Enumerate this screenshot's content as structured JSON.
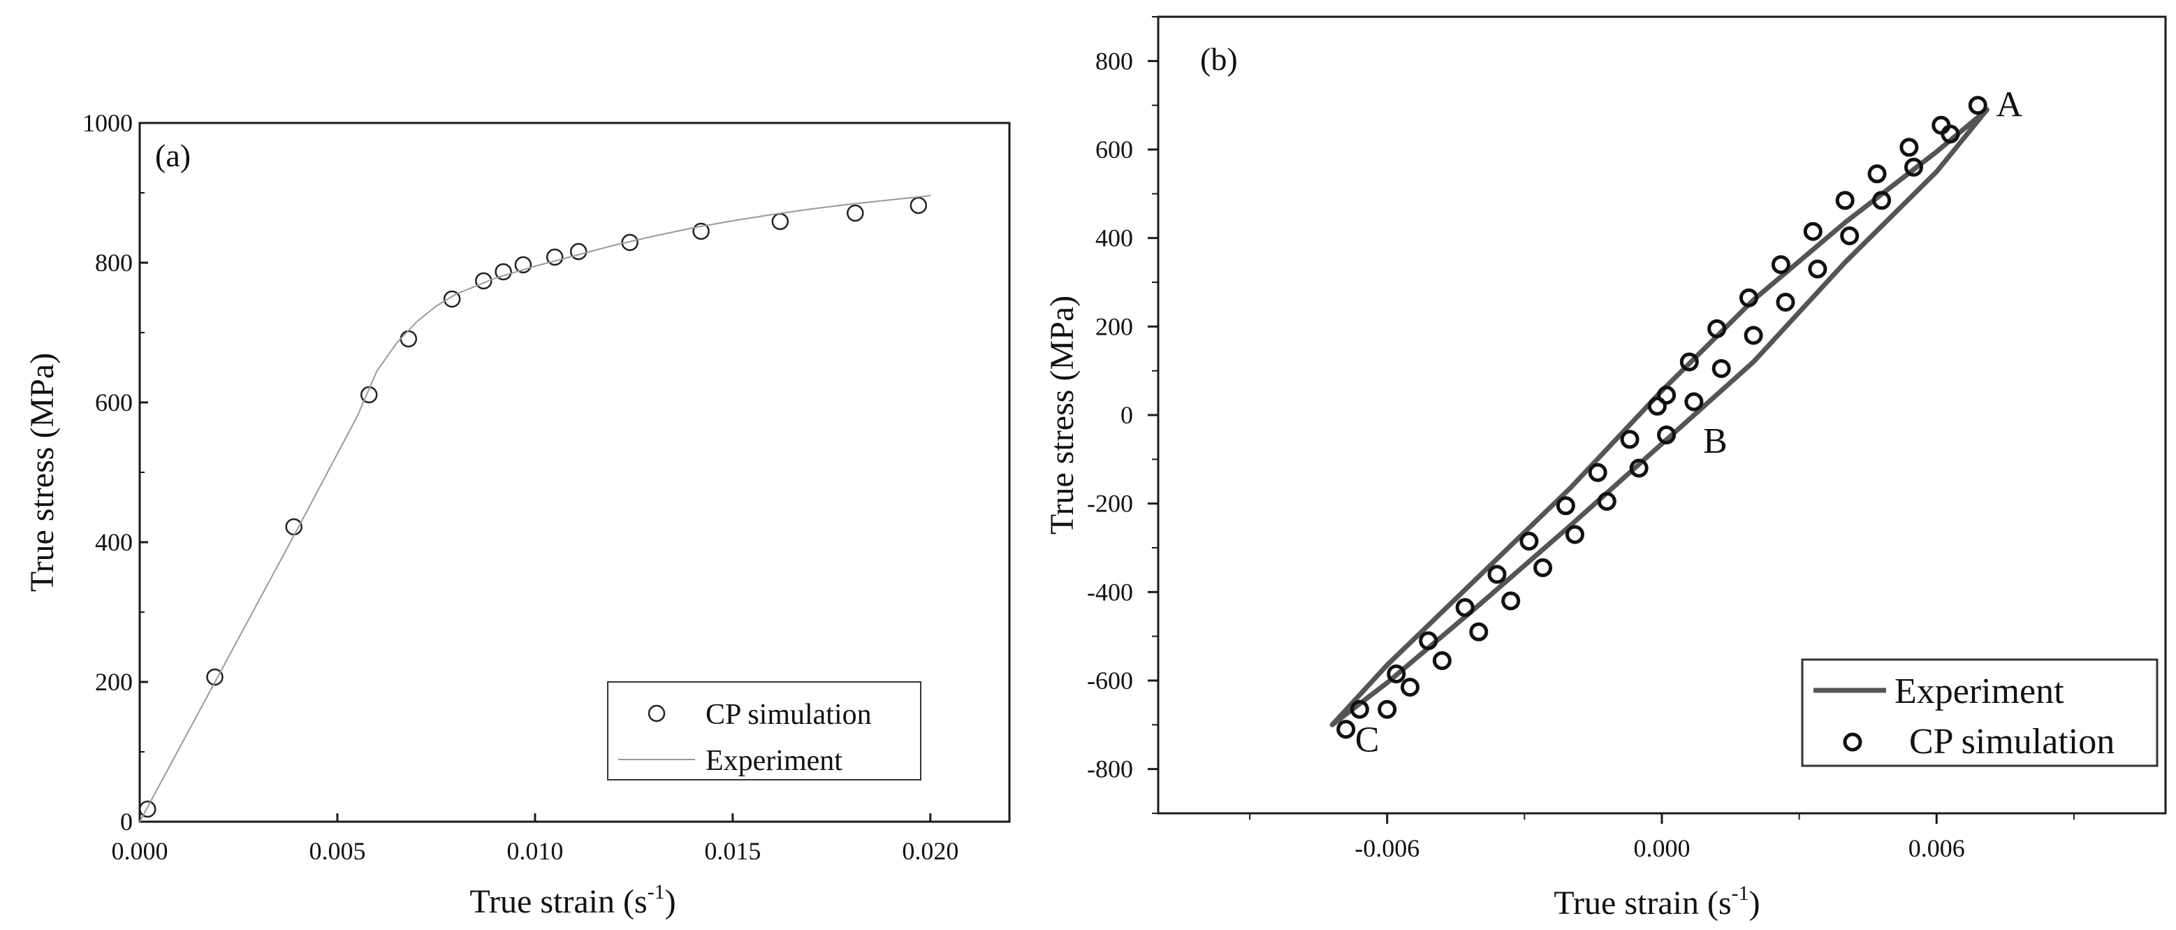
{
  "chart_data": [
    {
      "type": "scatter",
      "panel_label": "(a)",
      "xlabel": "True strain (s",
      "xlabel_exponent": "-1",
      "xlabel_suffix": ")",
      "ylabel": "True stress (MPa)",
      "xlim": [
        0,
        0.022
      ],
      "ylim": [
        0,
        1000
      ],
      "xticks": [
        0.0,
        0.005,
        0.01,
        0.015,
        0.02
      ],
      "xtick_labels": [
        "0.000",
        "0.005",
        "0.010",
        "0.015",
        "0.020"
      ],
      "yticks": [
        0,
        200,
        400,
        600,
        800,
        1000
      ],
      "ytick_labels": [
        "0",
        "200",
        "400",
        "600",
        "800",
        "1000"
      ],
      "legend_position": "bottom-right",
      "series": [
        {
          "name": "CP simulation",
          "style": "open-circle",
          "x": [
            0.0002,
            0.0019,
            0.0039,
            0.0058,
            0.0068,
            0.0079,
            0.0087,
            0.0092,
            0.0097,
            0.0105,
            0.0111,
            0.0124,
            0.0142,
            0.0162,
            0.0181,
            0.0197
          ],
          "y": [
            18,
            207,
            422,
            611,
            691,
            748,
            774,
            787,
            797,
            808,
            816,
            829,
            845,
            859,
            871,
            882
          ]
        },
        {
          "name": "Experiment",
          "style": "thin-line",
          "x": [
            0.0,
            0.002,
            0.004,
            0.0055,
            0.006,
            0.0065,
            0.007,
            0.0075,
            0.008,
            0.009,
            0.01,
            0.011,
            0.012,
            0.013,
            0.014,
            0.015,
            0.016,
            0.017,
            0.018,
            0.019,
            0.02
          ],
          "y": [
            0,
            210,
            420,
            580,
            645,
            685,
            715,
            738,
            755,
            778,
            795,
            810,
            825,
            838,
            850,
            860,
            869,
            877,
            884,
            890,
            896
          ]
        }
      ]
    },
    {
      "type": "scatter",
      "panel_label": "(b)",
      "xlabel": "True strain (s",
      "xlabel_exponent": "-1",
      "xlabel_suffix": ")",
      "ylabel": "True stress (MPa)",
      "xlim": [
        -0.011,
        0.011
      ],
      "ylim": [
        -900,
        900
      ],
      "xticks": [
        -0.006,
        0.0,
        0.006
      ],
      "xtick_labels": [
        "-0.006",
        "0.000",
        "0.006"
      ],
      "yticks": [
        -800,
        -600,
        -400,
        -200,
        0,
        200,
        400,
        600,
        800
      ],
      "ytick_labels": [
        "-800",
        "-600",
        "-400",
        "-200",
        "0",
        "200",
        "400",
        "600",
        "800"
      ],
      "legend_position": "bottom-right",
      "annotations": [
        {
          "text": "A",
          "x": 0.0073,
          "y": 675
        },
        {
          "text": "B",
          "x": 0.0009,
          "y": -85
        },
        {
          "text": "C",
          "x": -0.0067,
          "y": -760
        }
      ],
      "series": [
        {
          "name": "Experiment",
          "style": "thick-line",
          "x": [
            -0.0072,
            -0.006,
            -0.004,
            -0.002,
            0.0,
            0.002,
            0.004,
            0.006,
            0.0071,
            0.006,
            0.004,
            0.002,
            0.0,
            -0.002,
            -0.004,
            -0.006,
            -0.0072
          ],
          "y": [
            -700,
            -565,
            -365,
            -165,
            55,
            260,
            435,
            595,
            690,
            550,
            345,
            120,
            -65,
            -250,
            -430,
            -605,
            -700
          ]
        },
        {
          "name": "CP simulation",
          "style": "bold-open-circle",
          "x": [
            0.0069,
            0.0061,
            0.0054,
            0.0047,
            0.004,
            0.0033,
            0.0026,
            0.0019,
            0.0012,
            0.0006,
            0.0001,
            -0.0001,
            -0.0007,
            -0.0014,
            -0.0021,
            -0.0029,
            -0.0036,
            -0.0043,
            -0.0051,
            -0.0058,
            -0.0066,
            -0.0069,
            -0.006,
            -0.0055,
            -0.0048,
            -0.004,
            -0.0033,
            -0.0026,
            -0.0019,
            -0.0012,
            -0.0005,
            0.0001,
            0.0007,
            0.0013,
            0.002,
            0.0027,
            0.0034,
            0.0041,
            0.0048,
            0.0055,
            0.0063
          ],
          "y": [
            700,
            655,
            605,
            545,
            485,
            415,
            340,
            265,
            195,
            120,
            45,
            20,
            -55,
            -130,
            -205,
            -285,
            -360,
            -435,
            -510,
            -585,
            -665,
            -710,
            -665,
            -615,
            -555,
            -490,
            -420,
            -345,
            -270,
            -195,
            -120,
            -45,
            30,
            105,
            180,
            255,
            330,
            405,
            485,
            560,
            635
          ]
        }
      ]
    }
  ]
}
